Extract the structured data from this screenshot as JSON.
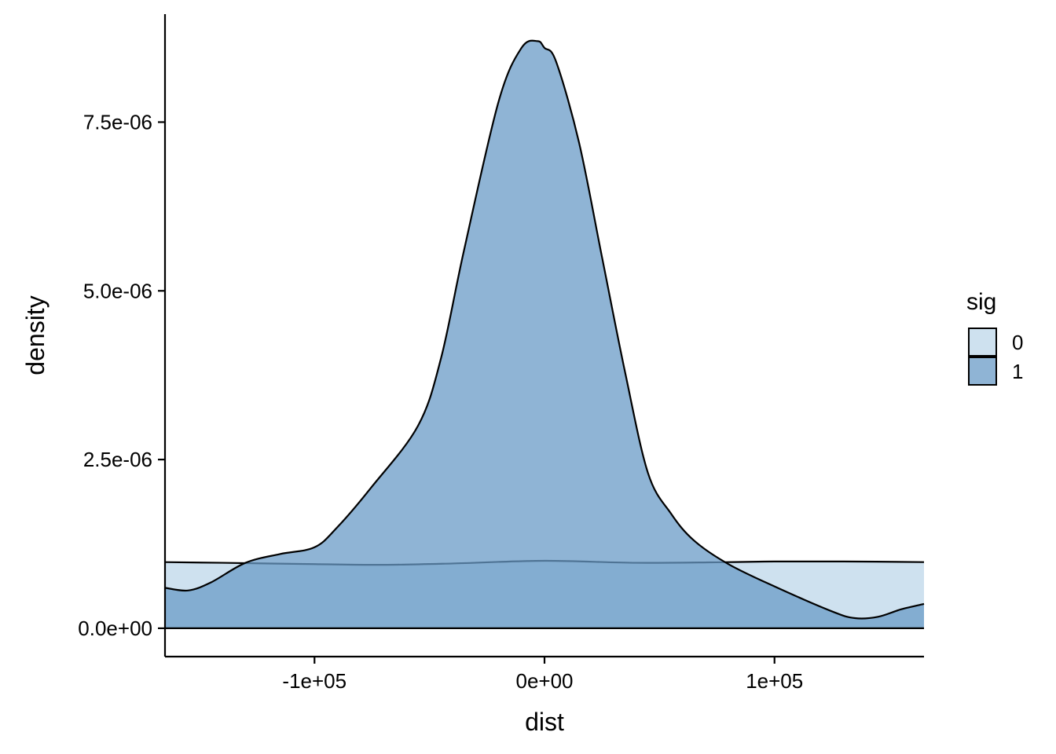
{
  "chart_data": {
    "type": "area",
    "subtype": "density",
    "xlabel": "dist",
    "ylabel": "density",
    "xlim": [
      -165000,
      165000
    ],
    "ylim": [
      -4.2e-07,
      9.1e-06
    ],
    "x_ticks": [
      {
        "value": -100000,
        "label": "-1e+05"
      },
      {
        "value": 0,
        "label": "0e+00"
      },
      {
        "value": 100000,
        "label": "1e+05"
      }
    ],
    "y_ticks": [
      {
        "value": 0,
        "label": "0.0e+00"
      },
      {
        "value": 2.5e-06,
        "label": "2.5e-06"
      },
      {
        "value": 5e-06,
        "label": "5.0e-06"
      },
      {
        "value": 7.5e-06,
        "label": "7.5e-06"
      }
    ],
    "grid": false,
    "legend": {
      "title": "sig",
      "position": "right"
    },
    "series": [
      {
        "name": "0",
        "color": "#c6dcec",
        "opacity": 0.85,
        "x": [
          -165000,
          -140000,
          -100000,
          -70000,
          -40000,
          0,
          40000,
          80000,
          100000,
          130000,
          165000
        ],
        "y": [
          9.8e-07,
          9.7e-07,
          9.5e-07,
          9.4e-07,
          9.6e-07,
          1e-06,
          9.7e-07,
          9.8e-07,
          9.9e-07,
          9.9e-07,
          9.8e-07
        ]
      },
      {
        "name": "1",
        "color": "#6a9bc7",
        "opacity": 0.75,
        "x": [
          -165000,
          -155000,
          -145000,
          -130000,
          -115000,
          -100000,
          -90000,
          -75000,
          -55000,
          -45000,
          -35000,
          -20000,
          -10000,
          -3000,
          0,
          5000,
          15000,
          25000,
          35000,
          45000,
          55000,
          65000,
          80000,
          100000,
          125000,
          135000,
          145000,
          155000,
          165000
        ],
        "y": [
          6e-07,
          5.6e-07,
          6.8e-07,
          9.7e-07,
          1.1e-06,
          1.2e-06,
          1.5e-06,
          2.1e-06,
          3e-06,
          4e-06,
          5.6e-06,
          7.8e-06,
          8.6e-06,
          8.7e-06,
          8.6e-06,
          8.4e-06,
          7.2e-06,
          5.5e-06,
          3.8e-06,
          2.3e-06,
          1.7e-06,
          1.3e-06,
          9.5e-07,
          6.2e-07,
          2.5e-07,
          1.5e-07,
          1.7e-07,
          2.8e-07,
          3.6e-07
        ]
      }
    ]
  }
}
